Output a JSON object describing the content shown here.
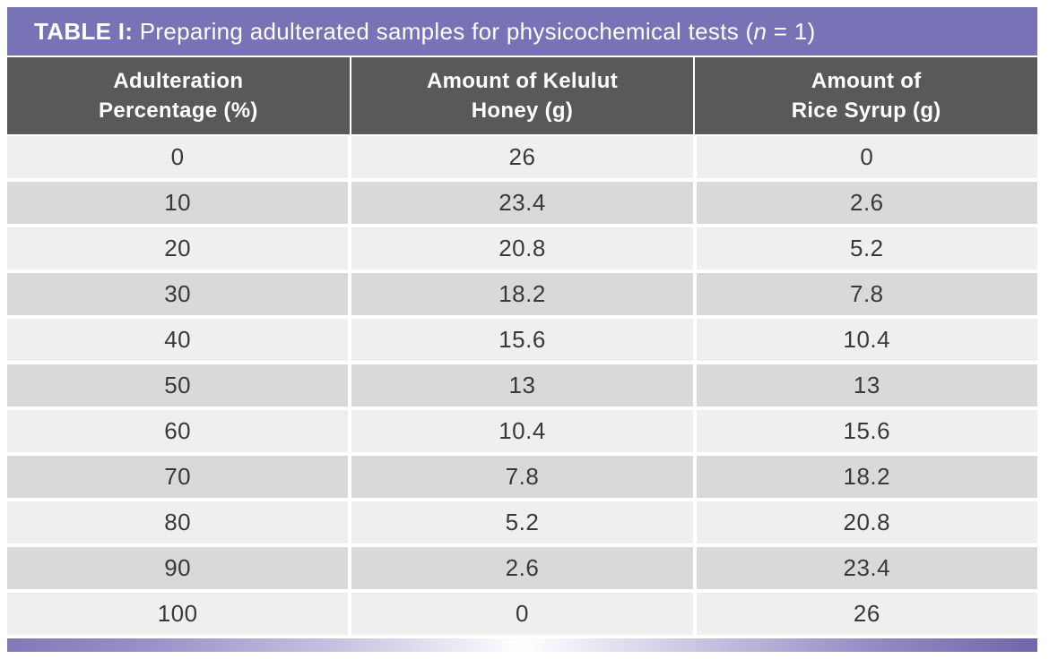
{
  "title": {
    "label_bold": "TABLE I:",
    "text_before_italic": " Preparing adulterated samples for physicochemical tests (",
    "italic_var": "n",
    "text_after_italic": " = 1)"
  },
  "table": {
    "columns": [
      "Adulteration\nPercentage (%)",
      "Amount of Kelulut\nHoney (g)",
      "Amount of\nRice Syrup (g)"
    ],
    "rows": [
      [
        "0",
        "26",
        "0"
      ],
      [
        "10",
        "23.4",
        "2.6"
      ],
      [
        "20",
        "20.8",
        "5.2"
      ],
      [
        "30",
        "18.2",
        "7.8"
      ],
      [
        "40",
        "15.6",
        "10.4"
      ],
      [
        "50",
        "13",
        "13"
      ],
      [
        "60",
        "10.4",
        "15.6"
      ],
      [
        "70",
        "7.8",
        "18.2"
      ],
      [
        "80",
        "5.2",
        "20.8"
      ],
      [
        "90",
        "2.6",
        "23.4"
      ],
      [
        "100",
        "0",
        "26"
      ]
    ]
  },
  "colors": {
    "title_bar": "#7872b7",
    "header_bg": "#59585a",
    "row_light": "#f0efef",
    "row_dark": "#d9d9db",
    "gradient_left": "#8279b8",
    "gradient_center": "#ffffff",
    "gradient_right": "#6f66ac"
  },
  "chart_data": {
    "type": "table",
    "title": "TABLE I: Preparing adulterated samples for physicochemical tests (n = 1)",
    "categories": [
      "Adulteration Percentage (%)",
      "Amount of Kelulut Honey (g)",
      "Amount of Rice Syrup (g)"
    ],
    "series": [
      {
        "name": "Adulteration Percentage (%)",
        "values": [
          0,
          10,
          20,
          30,
          40,
          50,
          60,
          70,
          80,
          90,
          100
        ]
      },
      {
        "name": "Amount of Kelulut Honey (g)",
        "values": [
          26,
          23.4,
          20.8,
          18.2,
          15.6,
          13,
          10.4,
          7.8,
          5.2,
          2.6,
          0
        ]
      },
      {
        "name": "Amount of Rice Syrup (g)",
        "values": [
          0,
          2.6,
          5.2,
          7.8,
          10.4,
          13,
          15.6,
          18.2,
          20.8,
          23.4,
          26
        ]
      }
    ]
  }
}
